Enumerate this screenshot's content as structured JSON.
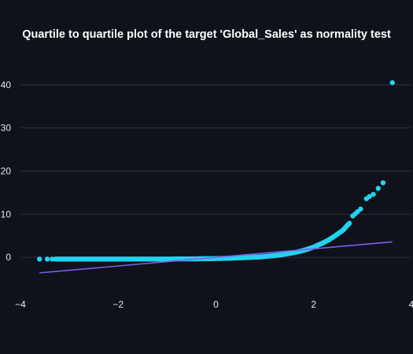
{
  "chart_data": {
    "type": "scatter",
    "title": "Quartile to quartile plot of the target 'Global_Sales' as normality test",
    "xlabel": "",
    "ylabel": "",
    "xlim": [
      -4,
      4
    ],
    "ylim": [
      -8,
      48
    ],
    "x_ticks": [
      -4,
      -2,
      0,
      2,
      4
    ],
    "x_tick_labels": [
      "−4",
      "−2",
      "0",
      "2",
      "4"
    ],
    "y_ticks": [
      0,
      10,
      20,
      30,
      40
    ],
    "y_tick_labels": [
      "0",
      "10",
      "20",
      "30",
      "40"
    ],
    "grid": "horizontal",
    "legend": "none",
    "colors": {
      "background": "#0f121a",
      "points": "#22d3ee",
      "fit_line": "#7c5cf0",
      "grid": "#2b2f38",
      "text": "#e8e8e8"
    },
    "series": [
      {
        "type": "scatter",
        "points": [
          [
            -3.61,
            -0.4
          ],
          [
            -3.45,
            -0.4
          ],
          [
            -3.35,
            -0.4
          ],
          [
            -3.28,
            -0.4
          ],
          [
            -3.2,
            -0.4
          ],
          [
            -3.1,
            -0.4
          ],
          [
            -3.0,
            -0.4
          ],
          [
            -2.9,
            -0.4
          ],
          [
            -2.8,
            -0.4
          ],
          [
            -2.7,
            -0.4
          ],
          [
            -2.6,
            -0.4
          ],
          [
            -2.5,
            -0.4
          ],
          [
            -2.4,
            -0.4
          ],
          [
            -2.3,
            -0.4
          ],
          [
            -2.2,
            -0.4
          ],
          [
            -2.1,
            -0.4
          ],
          [
            -2.0,
            -0.4
          ],
          [
            -1.9,
            -0.4
          ],
          [
            -1.8,
            -0.4
          ],
          [
            -1.7,
            -0.4
          ],
          [
            -1.6,
            -0.4
          ],
          [
            -1.5,
            -0.4
          ],
          [
            -1.4,
            -0.4
          ],
          [
            -1.3,
            -0.4
          ],
          [
            -1.2,
            -0.4
          ],
          [
            -1.1,
            -0.4
          ],
          [
            -1.0,
            -0.4
          ],
          [
            -0.9,
            -0.4
          ],
          [
            -0.8,
            -0.35
          ],
          [
            -0.7,
            -0.35
          ],
          [
            -0.6,
            -0.35
          ],
          [
            -0.5,
            -0.35
          ],
          [
            -0.4,
            -0.35
          ],
          [
            -0.3,
            -0.3
          ],
          [
            -0.2,
            -0.3
          ],
          [
            -0.1,
            -0.3
          ],
          [
            0.0,
            -0.25
          ],
          [
            0.1,
            -0.25
          ],
          [
            0.2,
            -0.2
          ],
          [
            0.3,
            -0.2
          ],
          [
            0.4,
            -0.15
          ],
          [
            0.5,
            -0.1
          ],
          [
            0.6,
            -0.05
          ],
          [
            0.7,
            0.0
          ],
          [
            0.8,
            0.05
          ],
          [
            0.9,
            0.1
          ],
          [
            1.0,
            0.2
          ],
          [
            1.1,
            0.3
          ],
          [
            1.2,
            0.4
          ],
          [
            1.3,
            0.55
          ],
          [
            1.4,
            0.7
          ],
          [
            1.5,
            0.9
          ],
          [
            1.6,
            1.1
          ],
          [
            1.7,
            1.35
          ],
          [
            1.8,
            1.65
          ],
          [
            1.9,
            2.0
          ],
          [
            2.0,
            2.4
          ],
          [
            2.1,
            2.9
          ],
          [
            2.2,
            3.4
          ],
          [
            2.3,
            4.0
          ],
          [
            2.4,
            4.7
          ],
          [
            2.5,
            5.5
          ],
          [
            2.6,
            6.3
          ],
          [
            2.68,
            7.3
          ],
          [
            2.73,
            7.9
          ],
          [
            2.8,
            9.6
          ],
          [
            2.85,
            10.1
          ],
          [
            2.9,
            10.6
          ],
          [
            2.96,
            11.2
          ],
          [
            3.08,
            13.6
          ],
          [
            3.14,
            14.1
          ],
          [
            3.22,
            14.6
          ],
          [
            3.32,
            16.0
          ],
          [
            3.42,
            17.3
          ],
          [
            3.61,
            40.5
          ]
        ]
      },
      {
        "type": "line",
        "points": [
          [
            -3.61,
            -3.6
          ],
          [
            3.61,
            3.6
          ]
        ]
      }
    ]
  }
}
